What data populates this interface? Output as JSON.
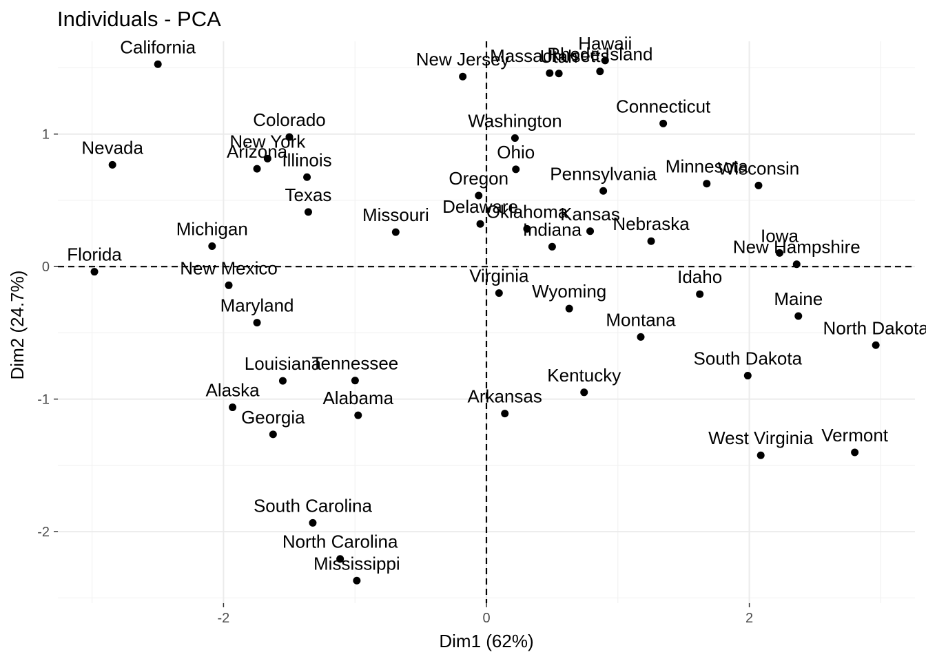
{
  "chart_data": {
    "type": "scatter",
    "title": "Individuals - PCA",
    "xlabel": "Dim1 (62%)",
    "ylabel": "Dim2 (24.7%)",
    "xlim": [
      -3.26,
      3.26
    ],
    "ylim": [
      -2.54,
      1.7
    ],
    "x_ticks": [
      -2,
      0,
      2
    ],
    "y_ticks": [
      -2,
      -1,
      0,
      1
    ],
    "x_tick_labels": [
      "-2",
      "0",
      "2"
    ],
    "y_tick_labels": [
      "-2",
      "-1",
      "0",
      "1"
    ],
    "grid": true,
    "reference_lines": {
      "x": 0,
      "y": 0,
      "style": "dashed"
    },
    "point_color": "#000000",
    "points": [
      {
        "label": "Alabama",
        "x": -0.976,
        "y": -1.122
      },
      {
        "label": "Alaska",
        "x": -1.931,
        "y": -1.062
      },
      {
        "label": "Arizona",
        "x": -1.745,
        "y": 0.738
      },
      {
        "label": "Arkansas",
        "x": 0.14,
        "y": -1.109
      },
      {
        "label": "California",
        "x": -2.499,
        "y": 1.527
      },
      {
        "label": "Colorado",
        "x": -1.499,
        "y": 0.978
      },
      {
        "label": "Connecticut",
        "x": 1.345,
        "y": 1.08
      },
      {
        "label": "Delaware",
        "x": -0.047,
        "y": 0.322
      },
      {
        "label": "Florida",
        "x": -2.982,
        "y": -0.039
      },
      {
        "label": "Georgia",
        "x": -1.623,
        "y": -1.266
      },
      {
        "label": "Hawaii",
        "x": 0.903,
        "y": 1.555
      },
      {
        "label": "Idaho",
        "x": 1.623,
        "y": -0.208
      },
      {
        "label": "Illinois",
        "x": -1.365,
        "y": 0.675
      },
      {
        "label": "Indiana",
        "x": 0.5,
        "y": 0.15
      },
      {
        "label": "Iowa",
        "x": 2.23,
        "y": 0.103
      },
      {
        "label": "Kansas",
        "x": 0.789,
        "y": 0.267
      },
      {
        "label": "Kentucky",
        "x": 0.743,
        "y": -0.949
      },
      {
        "label": "Louisiana",
        "x": -1.549,
        "y": -0.862
      },
      {
        "label": "Maine",
        "x": 2.373,
        "y": -0.373
      },
      {
        "label": "Maryland",
        "x": -1.745,
        "y": -0.423
      },
      {
        "label": "Massachusetts",
        "x": 0.481,
        "y": 1.46
      },
      {
        "label": "Michigan",
        "x": -2.087,
        "y": 0.154
      },
      {
        "label": "Minnesota",
        "x": 1.676,
        "y": 0.626
      },
      {
        "label": "Mississippi",
        "x": -0.986,
        "y": -2.37
      },
      {
        "label": "Missouri",
        "x": -0.69,
        "y": 0.26
      },
      {
        "label": "Montana",
        "x": 1.174,
        "y": -0.531
      },
      {
        "label": "Nebraska",
        "x": 1.253,
        "y": 0.192
      },
      {
        "label": "Nevada",
        "x": -2.845,
        "y": 0.768
      },
      {
        "label": "New Hampshire",
        "x": 2.36,
        "y": 0.018
      },
      {
        "label": "New Jersey",
        "x": -0.18,
        "y": 1.434
      },
      {
        "label": "New Mexico",
        "x": -1.96,
        "y": -0.141
      },
      {
        "label": "New York",
        "x": -1.665,
        "y": 0.815
      },
      {
        "label": "North Carolina",
        "x": -1.113,
        "y": -2.206
      },
      {
        "label": "North Dakota",
        "x": 2.962,
        "y": -0.593
      },
      {
        "label": "Ohio",
        "x": 0.224,
        "y": 0.734
      },
      {
        "label": "Oklahoma",
        "x": 0.309,
        "y": 0.285
      },
      {
        "label": "Oregon",
        "x": -0.059,
        "y": 0.536
      },
      {
        "label": "Pennsylvania",
        "x": 0.889,
        "y": 0.571
      },
      {
        "label": "Rhode Island",
        "x": 0.864,
        "y": 1.473
      },
      {
        "label": "South Carolina",
        "x": -1.321,
        "y": -1.934
      },
      {
        "label": "South Dakota",
        "x": 1.988,
        "y": -0.823
      },
      {
        "label": "Tennessee",
        "x": -0.999,
        "y": -0.86
      },
      {
        "label": "Texas",
        "x": -1.355,
        "y": 0.412
      },
      {
        "label": "Utah",
        "x": 0.551,
        "y": 1.457
      },
      {
        "label": "Vermont",
        "x": 2.802,
        "y": -1.402
      },
      {
        "label": "Virginia",
        "x": 0.096,
        "y": -0.2
      },
      {
        "label": "Washington",
        "x": 0.217,
        "y": 0.97
      },
      {
        "label": "West Virginia",
        "x": 2.087,
        "y": -1.424
      },
      {
        "label": "Wisconsin",
        "x": 2.07,
        "y": 0.612
      },
      {
        "label": "Wyoming",
        "x": 0.63,
        "y": -0.317
      }
    ]
  }
}
